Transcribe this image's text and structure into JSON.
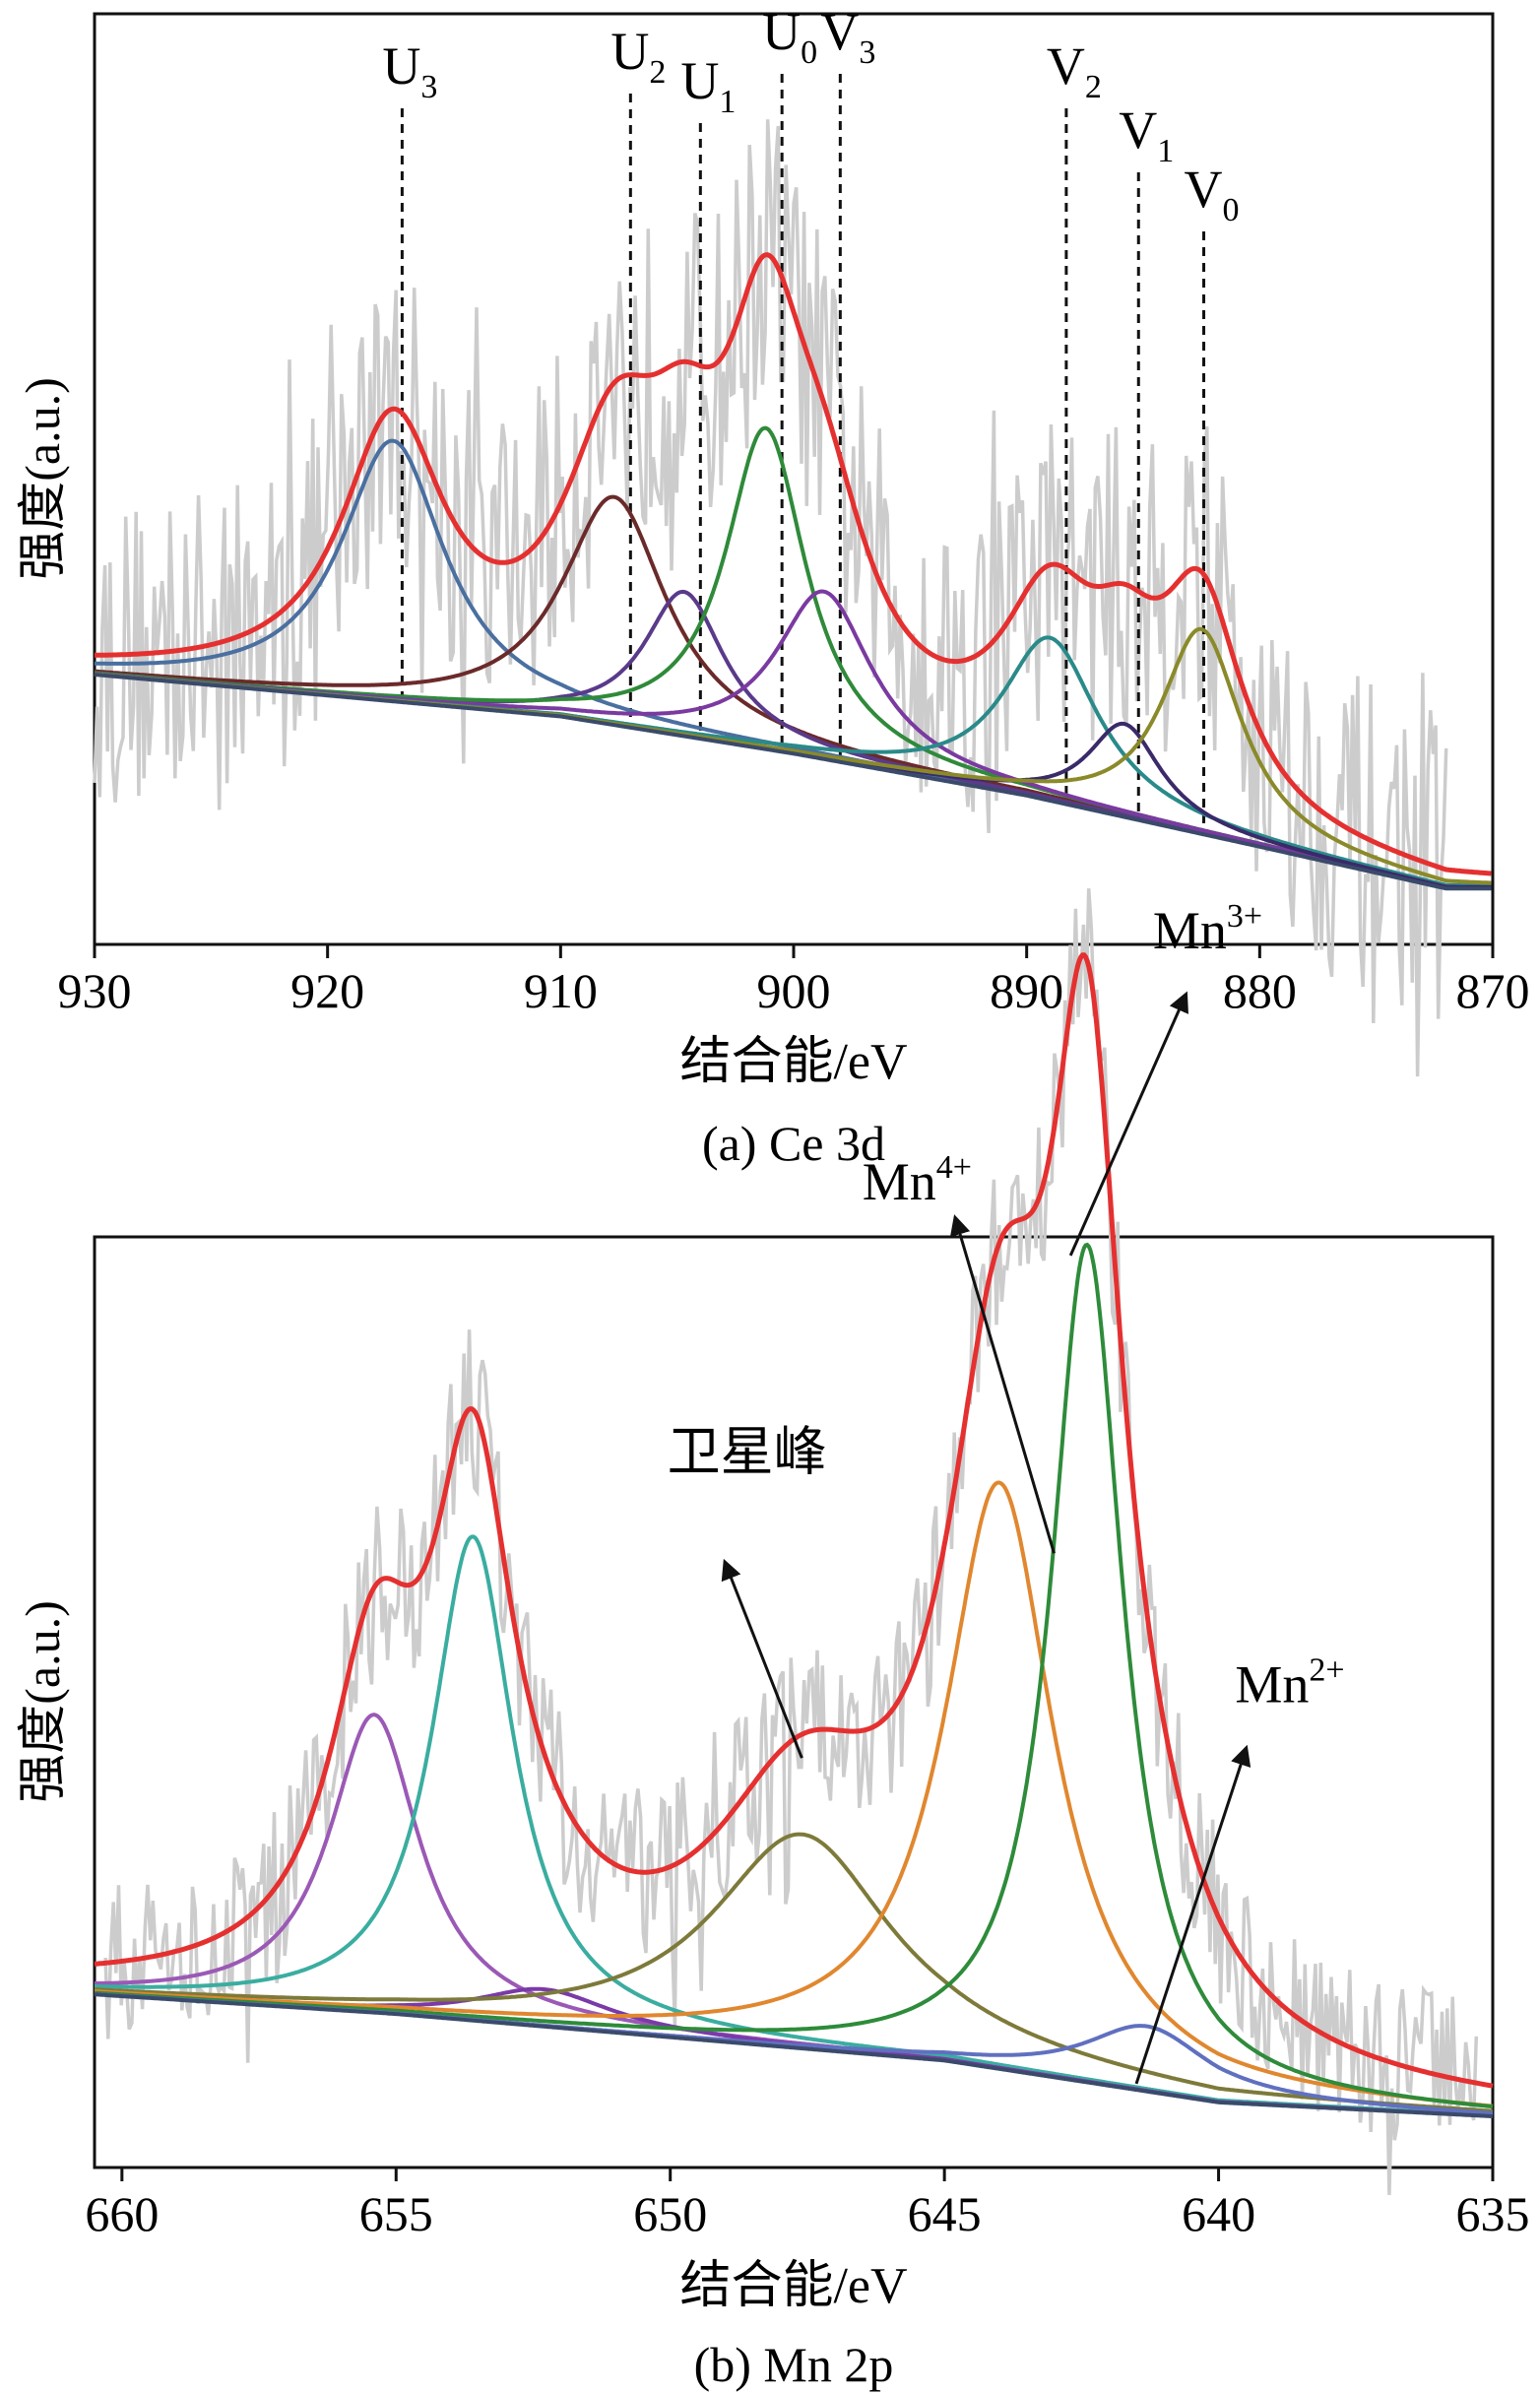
{
  "chart_data": [
    {
      "type": "line",
      "caption": "(a) Ce 3d",
      "xlabel": "结合能/eV",
      "ylabel": "强度(a.u.)",
      "xlim": [
        930,
        870
      ],
      "x_reversed": true,
      "ylim": [
        0,
        1
      ],
      "xticks": [
        930,
        920,
        910,
        900,
        890,
        880,
        870
      ],
      "grid": false,
      "baseline": [
        [
          930,
          0.29
        ],
        [
          910,
          0.245
        ],
        [
          900,
          0.205
        ],
        [
          890,
          0.16
        ],
        [
          880,
          0.105
        ],
        [
          872,
          0.06
        ]
      ],
      "raw_noise": {
        "name": "raw",
        "color": "#cccccc",
        "amplitude": 0.17,
        "x_from": 930,
        "x_to": 872
      },
      "series": [
        {
          "name": "U3",
          "color": "#4a6fa0",
          "center": 917.2,
          "height": 0.28,
          "width": 2.7
        },
        {
          "name": "U2",
          "color": "#6b2a2a",
          "center": 907.7,
          "height": 0.245,
          "width": 2.7
        },
        {
          "name": "U1",
          "color": "#5a3a8a",
          "center": 904.7,
          "height": 0.155,
          "width": 2.1
        },
        {
          "name": "U0",
          "color": "#2f8a3a",
          "center": 901.2,
          "height": 0.345,
          "width": 2.1
        },
        {
          "name": "V3",
          "color": "#7a3aa0",
          "center": 898.7,
          "height": 0.18,
          "width": 2.5
        },
        {
          "name": "V2",
          "color": "#2a8a8a",
          "center": 889.0,
          "height": 0.175,
          "width": 2.5
        },
        {
          "name": "V1",
          "color": "#3a2a6a",
          "center": 885.8,
          "height": 0.1,
          "width": 1.9
        },
        {
          "name": "V0",
          "color": "#8a8a2a",
          "center": 882.5,
          "height": 0.22,
          "width": 2.1
        }
      ],
      "envelope_color": "#e53030",
      "annotations": [
        {
          "label": "U",
          "sub": "3",
          "x": 916.8
        },
        {
          "label": "U",
          "sub": "2",
          "x": 907.0
        },
        {
          "label": "U",
          "sub": "1",
          "x": 904.0
        },
        {
          "label": "U",
          "sub": "0",
          "x": 900.5
        },
        {
          "label": "V",
          "sub": "3",
          "x": 898.0
        },
        {
          "label": "V",
          "sub": "2",
          "x": 888.3
        },
        {
          "label": "V",
          "sub": "1",
          "x": 885.2
        },
        {
          "label": "V",
          "sub": "0",
          "x": 882.4
        }
      ]
    },
    {
      "type": "line",
      "caption": "(b) Mn 2p",
      "xlabel": "结合能/eV",
      "ylabel": "强度(a.u.)",
      "xlim": [
        660.5,
        635
      ],
      "x_reversed": true,
      "ylim": [
        0,
        1
      ],
      "xticks": [
        660,
        655,
        650,
        645,
        640,
        635
      ],
      "grid": false,
      "baseline": [
        [
          660.5,
          0.186
        ],
        [
          655,
          0.165
        ],
        [
          650,
          0.14
        ],
        [
          645,
          0.115
        ],
        [
          640,
          0.07
        ],
        [
          635,
          0.055
        ]
      ],
      "raw_noise": {
        "name": "raw",
        "color": "#cccccc",
        "amplitude": 0.09,
        "x_from": 660.3,
        "x_to": 635.3
      },
      "series": [
        {
          "name": "purple-655",
          "color": "#9b59b6",
          "center": 655.4,
          "height": 0.32,
          "width": 1.0
        },
        {
          "name": "teal-653.6",
          "color": "#3aada0",
          "center": 653.6,
          "height": 0.52,
          "width": 0.9
        },
        {
          "name": "violet-652.3",
          "color": "#7a3aa8",
          "center": 652.3,
          "height": 0.04,
          "width": 1.5
        },
        {
          "name": "卫星峰",
          "color": "#7d7a3a",
          "center": 647.6,
          "height": 0.23,
          "width": 2.0
        },
        {
          "name": "Mn4+",
          "color": "#e0872f",
          "center": 644.0,
          "height": 0.63,
          "width": 1.2
        },
        {
          "name": "Mn3+",
          "color": "#2e8b3a",
          "center": 642.4,
          "height": 0.9,
          "width": 0.8
        },
        {
          "name": "Mn2+",
          "color": "#6070c0",
          "center": 641.3,
          "height": 0.07,
          "width": 1.4
        }
      ],
      "envelope_color": "#e53030",
      "annotations": [
        {
          "label": "Mn",
          "sup": "4+",
          "text_x": 645.5,
          "text_y": 1.04,
          "tip_x": 644.8,
          "tip_y": 1.02,
          "tail_x": 643.0,
          "tail_y": 0.66
        },
        {
          "label": "Mn",
          "sup": "3+",
          "text_x": 640.2,
          "text_y": 1.31,
          "tip_x": 640.6,
          "tip_y": 1.26,
          "tail_x": 642.7,
          "tail_y": 0.98
        },
        {
          "label": "Mn",
          "sup": "2+",
          "text_x": 638.7,
          "text_y": 0.5,
          "tip_x": 639.5,
          "tip_y": 0.45,
          "tail_x": 641.5,
          "tail_y": 0.09
        },
        {
          "label": "卫星峰",
          "sup": "",
          "text_x": 648.6,
          "text_y": 0.75,
          "tip_x": 649.0,
          "tip_y": 0.65,
          "tail_x": 647.6,
          "tail_y": 0.44
        }
      ]
    }
  ]
}
